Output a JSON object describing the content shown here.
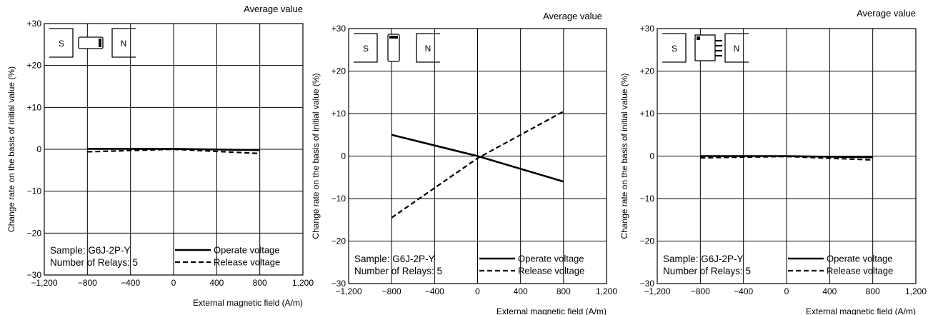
{
  "chart_data": [
    {
      "type": "line",
      "title": "Average value",
      "xlabel": "External magnetic field (A/m)",
      "ylabel": "Change rate on the basis of initial value (%)",
      "xlim": [
        -1200,
        1200
      ],
      "ylim": [
        -30,
        30
      ],
      "x_ticks": [
        "−1,200",
        "−800",
        "−400",
        "0",
        "400",
        "800",
        "1,200"
      ],
      "y_ticks": [
        "+30",
        "+20",
        "+10",
        "0",
        "−10",
        "−20",
        "−30"
      ],
      "grid": true,
      "magnet": {
        "s_label": "S",
        "n_label": "N",
        "orientation": "horizontal"
      },
      "note": {
        "sample": "Sample: G6J-2P-Y",
        "relays": "Number of Relays: 5"
      },
      "legend_position": "bottom-right",
      "series": [
        {
          "name": "Operate voltage",
          "style": "solid",
          "x": [
            -800,
            0,
            800
          ],
          "y": [
            0.1,
            0.1,
            -0.2
          ]
        },
        {
          "name": "Release voltage",
          "style": "dashed",
          "x": [
            -800,
            0,
            800
          ],
          "y": [
            -0.6,
            0.0,
            -1.0
          ]
        }
      ]
    },
    {
      "type": "line",
      "title": "Average value",
      "xlabel": "External magnetic field (A/m)",
      "ylabel": "Change rate on the basis of initial value (%)",
      "xlim": [
        -1200,
        1200
      ],
      "ylim": [
        -30,
        30
      ],
      "x_ticks": [
        "−1,200",
        "−800",
        "−400",
        "0",
        "400",
        "800",
        "1,200"
      ],
      "y_ticks": [
        "+30",
        "+20",
        "+10",
        "0",
        "−10",
        "−20",
        "−30"
      ],
      "grid": true,
      "magnet": {
        "s_label": "S",
        "n_label": "N",
        "orientation": "vertical"
      },
      "note": {
        "sample": "Sample: G6J-2P-Y",
        "relays": "Number of Relays: 5"
      },
      "legend_position": "bottom-right",
      "series": [
        {
          "name": "Operate voltage",
          "style": "solid",
          "x": [
            -800,
            0,
            800
          ],
          "y": [
            5.0,
            0.0,
            -6.0
          ]
        },
        {
          "name": "Release voltage",
          "style": "dashed",
          "x": [
            -800,
            0,
            800
          ],
          "y": [
            -14.5,
            -0.5,
            10.5
          ]
        }
      ]
    },
    {
      "type": "line",
      "title": "Average value",
      "xlabel": "External magnetic field (A/m)",
      "ylabel": "Change rate on the basis of initial value (%)",
      "xlim": [
        -1200,
        1200
      ],
      "ylim": [
        -30,
        30
      ],
      "x_ticks": [
        "−1,200",
        "−800",
        "−400",
        "0",
        "400",
        "800",
        "1,200"
      ],
      "y_ticks": [
        "+30",
        "+20",
        "+10",
        "0",
        "−10",
        "−20",
        "−30"
      ],
      "grid": true,
      "magnet": {
        "s_label": "S",
        "n_label": "N",
        "orientation": "pins"
      },
      "note": {
        "sample": "Sample: G6J-2P-Y",
        "relays": "Number of Relays: 5"
      },
      "legend_position": "bottom-right",
      "series": [
        {
          "name": "Operate voltage",
          "style": "solid",
          "x": [
            -800,
            0,
            800
          ],
          "y": [
            0.0,
            0.0,
            -0.3
          ]
        },
        {
          "name": "Release voltage",
          "style": "dashed",
          "x": [
            -800,
            0,
            800
          ],
          "y": [
            -0.4,
            -0.1,
            -0.9
          ]
        }
      ]
    }
  ]
}
